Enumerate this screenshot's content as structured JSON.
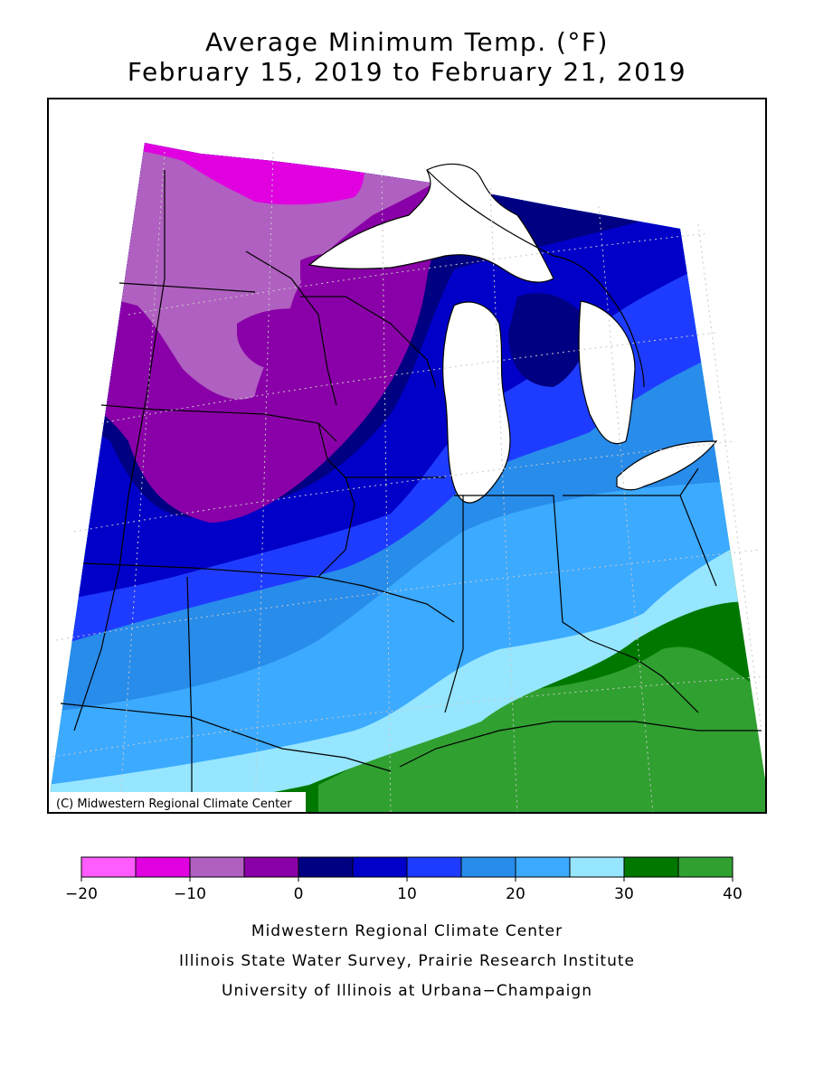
{
  "title": {
    "line1": "Average Minimum Temp. (°F)",
    "line2": "February 15, 2019 to February 21, 2019"
  },
  "map": {
    "copyright": "(C) Midwestern Regional Climate Center"
  },
  "legend": {
    "bins": [
      {
        "from": -20,
        "to": -15,
        "color": "#ff5cff"
      },
      {
        "from": -15,
        "to": -10,
        "color": "#e000e0"
      },
      {
        "from": -10,
        "to": -5,
        "color": "#b060c0"
      },
      {
        "from": -5,
        "to": 0,
        "color": "#8a00a8"
      },
      {
        "from": 0,
        "to": 5,
        "color": "#000082"
      },
      {
        "from": 5,
        "to": 10,
        "color": "#0000c8"
      },
      {
        "from": 10,
        "to": 15,
        "color": "#1e3cff"
      },
      {
        "from": 15,
        "to": 20,
        "color": "#288ceb"
      },
      {
        "from": 20,
        "to": 25,
        "color": "#3caaff"
      },
      {
        "from": 25,
        "to": 30,
        "color": "#96e6ff"
      },
      {
        "from": 30,
        "to": 35,
        "color": "#007800"
      },
      {
        "from": 35,
        "to": 40,
        "color": "#30a030"
      }
    ],
    "tick_labels": [
      "−20",
      "−10",
      "0",
      "10",
      "20",
      "30",
      "40"
    ],
    "tick_values": [
      -20,
      -10,
      0,
      10,
      20,
      30,
      40
    ]
  },
  "footer": {
    "line1": "Midwestern Regional Climate Center",
    "line2": "Illinois State Water Survey, Prairie Research Institute",
    "line3": "University of Illinois at Urbana−Champaign"
  }
}
